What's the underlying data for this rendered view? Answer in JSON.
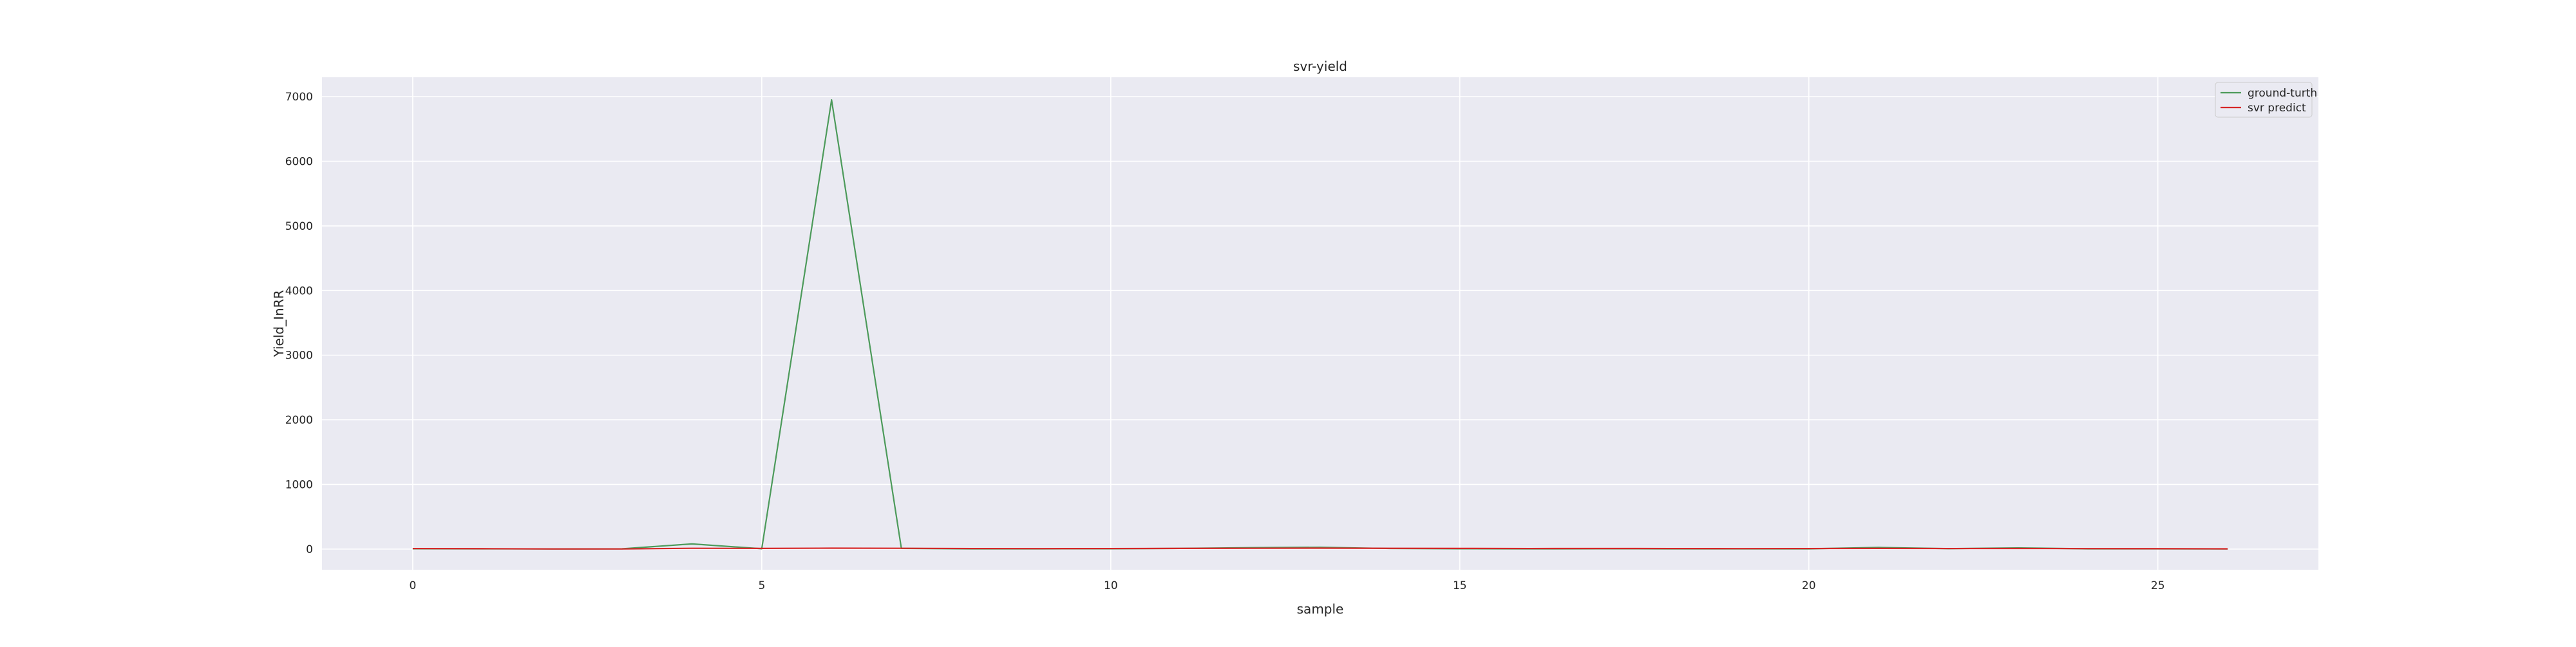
{
  "chart_data": {
    "type": "line",
    "title": "svr-yield",
    "xlabel": "sample",
    "ylabel": "Yield_InRR",
    "xlim": [
      -1.3,
      27.3
    ],
    "ylim": [
      -320,
      7300
    ],
    "xticks": [
      0,
      5,
      10,
      15,
      20,
      25
    ],
    "yticks": [
      0,
      1000,
      2000,
      3000,
      4000,
      5000,
      6000,
      7000
    ],
    "grid": true,
    "legend_position": "top-right",
    "x": [
      0,
      1,
      2,
      3,
      4,
      5,
      6,
      7,
      8,
      9,
      10,
      11,
      12,
      13,
      14,
      15,
      16,
      17,
      18,
      19,
      20,
      21,
      22,
      23,
      24,
      25,
      26
    ],
    "series": [
      {
        "name": "ground-turth",
        "color": "#4c9a5a",
        "values": [
          5,
          3,
          2,
          4,
          80,
          5,
          6950,
          10,
          3,
          4,
          5,
          10,
          22,
          28,
          8,
          5,
          3,
          5,
          4,
          3,
          4,
          25,
          6,
          18,
          4,
          3,
          2
        ]
      },
      {
        "name": "svr predict",
        "color": "#d62728",
        "values": [
          8,
          6,
          2,
          2,
          12,
          10,
          14,
          12,
          8,
          7,
          8,
          10,
          12,
          14,
          11,
          10,
          8,
          9,
          8,
          7,
          8,
          10,
          8,
          9,
          7,
          6,
          4
        ]
      }
    ],
    "colors": {
      "plot_background": "#eaeaf2",
      "grid": "#ffffff"
    }
  }
}
